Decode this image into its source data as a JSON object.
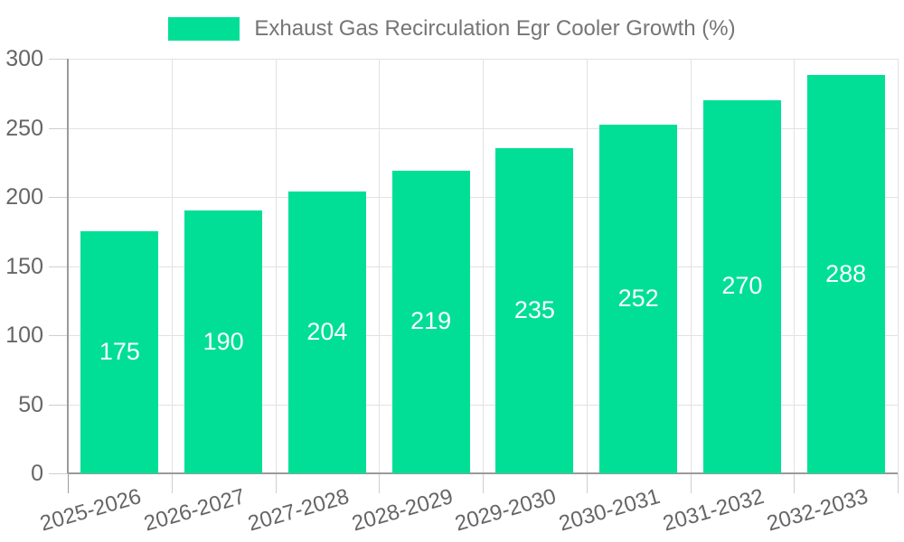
{
  "legend": {
    "label": "Exhaust Gas Recirculation Egr Cooler Growth (%)"
  },
  "colors": {
    "bar": "#00DF95",
    "grid": "#E2E2E2",
    "tick": "#CFCFCF",
    "axis": "#9A9A9A",
    "tick_label": "#666666",
    "legend_text": "#757575",
    "value_label": "#FFFFFF",
    "background": "#FFFFFF"
  },
  "chart_data": {
    "type": "bar",
    "title": "Exhaust Gas Recirculation Egr Cooler Growth (%)",
    "categories": [
      "2025-2026",
      "2026-2027",
      "2027-2028",
      "2028-2029",
      "2029-2030",
      "2030-2031",
      "2031-2032",
      "2032-2033"
    ],
    "values": [
      175,
      190,
      204,
      219,
      235,
      252,
      270,
      288
    ],
    "xlabel": "",
    "ylabel": "",
    "ylim": [
      0,
      300
    ],
    "yticks": [
      0,
      50,
      100,
      150,
      200,
      250,
      300
    ],
    "grid": true,
    "legend_position": "top",
    "value_labels": "inside-center",
    "bar_color": "#00DF95"
  }
}
